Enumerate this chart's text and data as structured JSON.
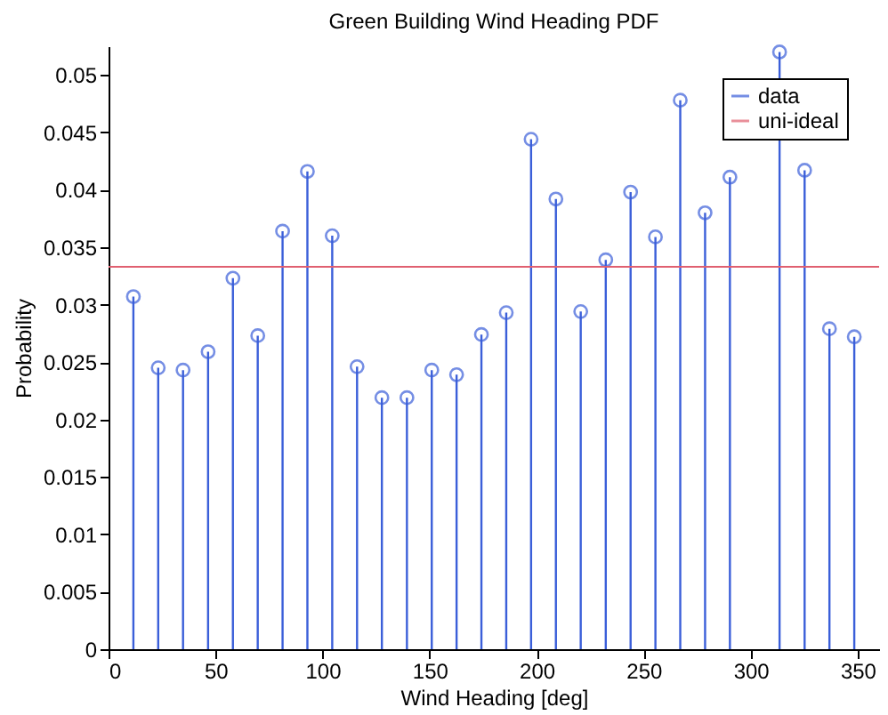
{
  "chart_data": {
    "type": "lollipop",
    "title": "Green Building Wind Heading PDF",
    "xlabel": "Wind Heading [deg]",
    "ylabel": "Probability",
    "x": [
      11.6,
      23.2,
      34.8,
      46.5,
      58.1,
      69.7,
      81.3,
      92.9,
      104.5,
      116.1,
      127.7,
      139.4,
      151.0,
      162.6,
      174.2,
      185.8,
      197.4,
      209.0,
      220.6,
      232.3,
      243.9,
      255.5,
      267.1,
      278.7,
      290.3,
      301.9,
      313.5,
      325.2,
      336.8,
      348.4
    ],
    "series": [
      {
        "name": "data",
        "color": "#3b5fd9",
        "values": [
          0.0307,
          0.0245,
          0.0243,
          0.0259,
          0.0323,
          0.0273,
          0.0364,
          0.0416,
          0.036,
          0.0246,
          0.0219,
          0.0219,
          0.0243,
          0.0239,
          0.0274,
          0.0293,
          0.0444,
          0.0392,
          0.0294,
          0.0339,
          0.0398,
          0.0359,
          0.0478,
          0.038,
          0.0411,
          null,
          0.052,
          0.0417,
          0.0279,
          0.0272
        ]
      }
    ],
    "ref_lines": [
      {
        "axis": "y",
        "value": 0.0333,
        "label": "uni-ideal",
        "color": "#e06070"
      }
    ],
    "xlim": [
      0,
      360
    ],
    "xticks": [
      0,
      50,
      100,
      150,
      200,
      250,
      300,
      350
    ],
    "ylim": [
      0,
      0.0525
    ],
    "yticks": [
      0,
      0.005,
      0.01,
      0.015,
      0.02,
      0.025,
      0.03,
      0.035,
      0.04,
      0.045,
      0.05
    ],
    "marker": "circle",
    "grid": false,
    "legend": "top right"
  }
}
